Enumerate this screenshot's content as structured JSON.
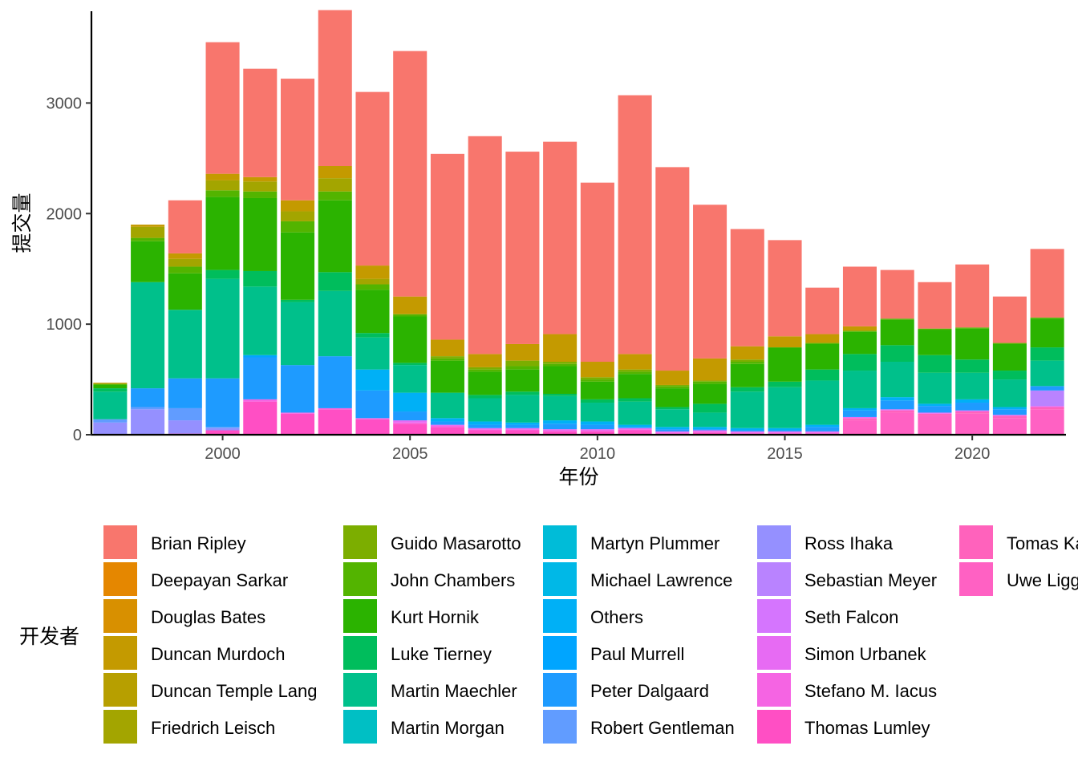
{
  "chart_data": {
    "type": "bar",
    "stacked": true,
    "xlabel": "年份",
    "ylabel": "提交量",
    "legend_title": "开发者",
    "legend_position": "bottom",
    "grid": false,
    "x_ticks": [
      2000,
      2005,
      2010,
      2015,
      2020
    ],
    "y_ticks": [
      0,
      1000,
      2000,
      3000
    ],
    "xlim": [
      1996.5,
      2022.5
    ],
    "ylim": [
      0,
      3830
    ],
    "categories": [
      1997,
      1998,
      1999,
      2000,
      2001,
      2002,
      2003,
      2004,
      2005,
      2006,
      2007,
      2008,
      2009,
      2010,
      2011,
      2012,
      2013,
      2014,
      2015,
      2016,
      2017,
      2018,
      2019,
      2020,
      2021,
      2022
    ],
    "series": [
      {
        "name": "Uwe Ligges",
        "color": "#FF61C3",
        "values": [
          0,
          0,
          0,
          0,
          0,
          0,
          0,
          0,
          0,
          0,
          0,
          0,
          0,
          0,
          0,
          0,
          0,
          0,
          0,
          0,
          130,
          200,
          170,
          190,
          150,
          230
        ]
      },
      {
        "name": "Tomas Kalibera",
        "color": "#FF62BC",
        "values": [
          0,
          0,
          0,
          0,
          0,
          0,
          0,
          0,
          0,
          0,
          0,
          0,
          0,
          0,
          0,
          0,
          0,
          0,
          0,
          0,
          20,
          20,
          20,
          20,
          20,
          20
        ]
      },
      {
        "name": "Thomas Lumley",
        "color": "#FF4FC4",
        "values": [
          0,
          0,
          10,
          40,
          300,
          190,
          230,
          140,
          100,
          70,
          40,
          40,
          30,
          30,
          40,
          10,
          20,
          10,
          10,
          10,
          0,
          0,
          0,
          0,
          0,
          0
        ]
      },
      {
        "name": "Stefano M. Iacus",
        "color": "#F564E3",
        "values": [
          0,
          0,
          0,
          0,
          20,
          10,
          10,
          10,
          10,
          10,
          10,
          10,
          10,
          10,
          10,
          10,
          10,
          10,
          10,
          10,
          0,
          0,
          0,
          0,
          0,
          0
        ]
      },
      {
        "name": "Simon Urbanek",
        "color": "#E76BF3",
        "values": [
          0,
          0,
          0,
          0,
          0,
          0,
          0,
          0,
          20,
          10,
          10,
          10,
          10,
          10,
          10,
          10,
          10,
          10,
          10,
          10,
          10,
          10,
          10,
          10,
          10,
          10
        ]
      },
      {
        "name": "Seth Falcon",
        "color": "#D575FE",
        "values": [
          0,
          0,
          0,
          0,
          0,
          0,
          0,
          0,
          0,
          0,
          0,
          0,
          0,
          0,
          0,
          0,
          0,
          0,
          0,
          0,
          0,
          0,
          0,
          0,
          0,
          0
        ]
      },
      {
        "name": "Sebastian Meyer",
        "color": "#B983FF",
        "values": [
          0,
          0,
          0,
          0,
          0,
          0,
          0,
          0,
          0,
          0,
          0,
          0,
          0,
          0,
          0,
          0,
          0,
          0,
          0,
          0,
          0,
          0,
          0,
          0,
          0,
          140
        ]
      },
      {
        "name": "Ross Ihaka",
        "color": "#9590FF",
        "values": [
          110,
          230,
          120,
          20,
          0,
          0,
          0,
          0,
          0,
          0,
          0,
          0,
          0,
          0,
          0,
          0,
          0,
          0,
          0,
          0,
          0,
          0,
          0,
          0,
          0,
          0
        ]
      },
      {
        "name": "Robert Gentleman",
        "color": "#619CFF",
        "values": [
          30,
          20,
          110,
          10,
          0,
          0,
          0,
          0,
          0,
          0,
          0,
          0,
          0,
          0,
          0,
          0,
          0,
          0,
          0,
          0,
          0,
          0,
          0,
          0,
          0,
          0
        ]
      },
      {
        "name": "Peter Dalgaard",
        "color": "#1E9BFF",
        "values": [
          0,
          170,
          270,
          440,
          380,
          430,
          470,
          250,
          80,
          30,
          30,
          30,
          50,
          40,
          10,
          20,
          10,
          10,
          10,
          40,
          60,
          80,
          60,
          70,
          50,
          40
        ]
      },
      {
        "name": "Paul Murrell",
        "color": "#00A5FF",
        "values": [
          0,
          0,
          0,
          0,
          20,
          0,
          0,
          0,
          0,
          0,
          0,
          0,
          0,
          0,
          0,
          0,
          0,
          0,
          0,
          0,
          0,
          0,
          0,
          0,
          0,
          0
        ]
      },
      {
        "name": "Others",
        "color": "#00B0F6",
        "values": [
          0,
          0,
          0,
          0,
          0,
          0,
          0,
          190,
          170,
          30,
          30,
          20,
          30,
          30,
          20,
          20,
          20,
          20,
          20,
          20,
          20,
          30,
          20,
          30,
          20,
          0
        ]
      },
      {
        "name": "Michael Lawrence",
        "color": "#00B8E7",
        "values": [
          0,
          0,
          0,
          0,
          0,
          0,
          0,
          0,
          0,
          0,
          0,
          0,
          0,
          0,
          0,
          0,
          0,
          0,
          0,
          0,
          0,
          0,
          0,
          0,
          0,
          0
        ]
      },
      {
        "name": "Martyn Plummer",
        "color": "#00BCD8",
        "values": [
          0,
          0,
          0,
          0,
          0,
          0,
          0,
          0,
          0,
          0,
          0,
          0,
          0,
          0,
          0,
          0,
          0,
          0,
          0,
          0,
          0,
          0,
          0,
          0,
          0,
          0
        ]
      },
      {
        "name": "Martin Morgan",
        "color": "#00BFC4",
        "values": [
          0,
          0,
          0,
          0,
          0,
          0,
          0,
          0,
          0,
          0,
          0,
          0,
          0,
          0,
          0,
          0,
          0,
          0,
          0,
          0,
          0,
          0,
          0,
          0,
          0,
          0
        ]
      },
      {
        "name": "Martin Maechler",
        "color": "#00C08B",
        "values": [
          250,
          960,
          620,
          900,
          620,
          570,
          590,
          290,
          250,
          230,
          210,
          250,
          220,
          170,
          210,
          160,
          130,
          330,
          370,
          400,
          340,
          320,
          280,
          240,
          250,
          230
        ]
      },
      {
        "name": "Luke Tierney",
        "color": "#00BD5C",
        "values": [
          30,
          0,
          0,
          80,
          140,
          20,
          170,
          40,
          20,
          0,
          30,
          30,
          20,
          30,
          30,
          20,
          80,
          40,
          50,
          100,
          150,
          150,
          160,
          120,
          80,
          120
        ]
      },
      {
        "name": "Kurt Hornik",
        "color": "#2BB300",
        "values": [
          30,
          370,
          330,
          660,
          660,
          610,
          650,
          390,
          420,
          290,
          210,
          200,
          250,
          160,
          220,
          170,
          180,
          210,
          310,
          230,
          200,
          230,
          230,
          280,
          240,
          260
        ]
      },
      {
        "name": "John Chambers",
        "color": "#53B400",
        "values": [
          10,
          30,
          60,
          60,
          60,
          100,
          80,
          50,
          20,
          20,
          20,
          30,
          20,
          20,
          20,
          20,
          20,
          20,
          0,
          10,
          10,
          10,
          10,
          10,
          10,
          10
        ]
      },
      {
        "name": "Guido Masarotto",
        "color": "#7CAE00",
        "values": [
          0,
          0,
          0,
          0,
          0,
          0,
          0,
          0,
          0,
          20,
          20,
          50,
          20,
          20,
          20,
          10,
          10,
          20,
          0,
          0,
          0,
          0,
          0,
          0,
          0,
          0
        ]
      },
      {
        "name": "Friedrich Leisch",
        "color": "#A3A500",
        "values": [
          0,
          100,
          70,
          90,
          90,
          90,
          120,
          50,
          0,
          0,
          0,
          0,
          0,
          0,
          0,
          0,
          0,
          0,
          0,
          0,
          0,
          0,
          0,
          0,
          0,
          0
        ]
      },
      {
        "name": "Duncan Temple Lang",
        "color": "#B79F00",
        "values": [
          0,
          0,
          0,
          0,
          0,
          0,
          0,
          0,
          0,
          0,
          0,
          0,
          0,
          0,
          0,
          0,
          0,
          0,
          0,
          0,
          0,
          0,
          0,
          0,
          0,
          0
        ]
      },
      {
        "name": "Duncan Murdoch",
        "color": "#C49A00",
        "values": [
          10,
          20,
          50,
          60,
          40,
          100,
          110,
          120,
          160,
          150,
          120,
          150,
          250,
          140,
          140,
          130,
          200,
          120,
          100,
          80,
          40,
          0,
          0,
          0,
          0,
          0
        ]
      },
      {
        "name": "Douglas Bates",
        "color": "#D89000",
        "values": [
          0,
          0,
          0,
          0,
          0,
          0,
          0,
          0,
          0,
          0,
          0,
          0,
          0,
          0,
          0,
          0,
          0,
          0,
          0,
          0,
          0,
          0,
          0,
          0,
          0,
          0
        ]
      },
      {
        "name": "Deepayan Sarkar",
        "color": "#E58700",
        "values": [
          0,
          0,
          0,
          0,
          0,
          0,
          0,
          0,
          0,
          0,
          0,
          0,
          0,
          0,
          0,
          0,
          0,
          0,
          0,
          0,
          0,
          0,
          0,
          0,
          0,
          0
        ]
      },
      {
        "name": "Brian Ripley",
        "color": "#F8766D",
        "values": [
          0,
          0,
          480,
          1190,
          980,
          1100,
          1410,
          1570,
          2220,
          1680,
          1970,
          1740,
          1740,
          1620,
          2340,
          1840,
          1390,
          1060,
          870,
          420,
          540,
          440,
          420,
          570,
          420,
          620
        ]
      }
    ],
    "legend_order": [
      "Brian Ripley",
      "Deepayan Sarkar",
      "Douglas Bates",
      "Duncan Murdoch",
      "Duncan Temple Lang",
      "Friedrich Leisch",
      "Guido Masarotto",
      "John Chambers",
      "Kurt Hornik",
      "Luke Tierney",
      "Martin Maechler",
      "Martin Morgan",
      "Martyn Plummer",
      "Michael Lawrence",
      "Others",
      "Paul Murrell",
      "Peter Dalgaard",
      "Robert Gentleman",
      "Ross Ihaka",
      "Sebastian Meyer",
      "Seth Falcon",
      "Simon Urbanek",
      "Stefano M. Iacus",
      "Thomas Lumley",
      "Tomas Kalibera",
      "Uwe Ligges"
    ]
  }
}
